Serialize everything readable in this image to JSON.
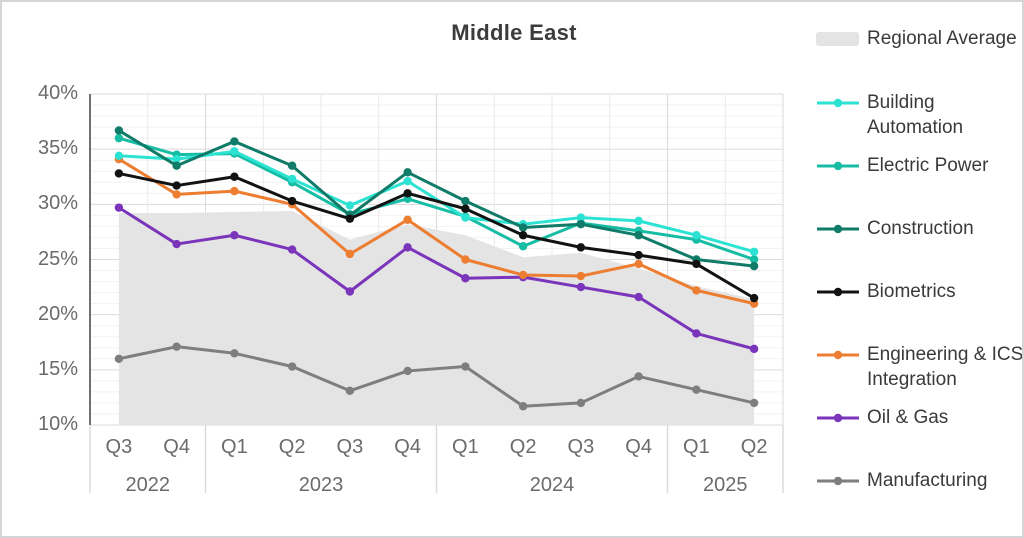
{
  "chart_data": {
    "type": "line",
    "title": "Middle East",
    "ylim": [
      10,
      40
    ],
    "y_ticks": [
      {
        "value": 40,
        "label": "40%"
      },
      {
        "value": 35,
        "label": "35%"
      },
      {
        "value": 30,
        "label": "30%"
      },
      {
        "value": 25,
        "label": "25%"
      },
      {
        "value": 20,
        "label": "20%"
      },
      {
        "value": 15,
        "label": "15%"
      },
      {
        "value": 10,
        "label": "10%"
      }
    ],
    "categories": [
      "Q3",
      "Q4",
      "Q1",
      "Q2",
      "Q3",
      "Q4",
      "Q1",
      "Q2",
      "Q3",
      "Q4",
      "Q1",
      "Q2"
    ],
    "year_groups": [
      {
        "label": "2022",
        "quarters": 2
      },
      {
        "label": "2023",
        "quarters": 4
      },
      {
        "label": "2024",
        "quarters": 4
      },
      {
        "label": "2025",
        "quarters": 2
      }
    ],
    "area_series": {
      "name": "Regional Average",
      "color": "#e4e4e4",
      "values": [
        29.2,
        29.2,
        29.3,
        29.4,
        26.8,
        28.2,
        27.2,
        25.2,
        25.6,
        24.2,
        22.6,
        21.4
      ]
    },
    "series": [
      {
        "name": "Building Automation",
        "color": "#2ce2d2",
        "values": [
          34.4,
          34.1,
          34.8,
          32.3,
          29.9,
          32.1,
          28.8,
          28.2,
          28.8,
          28.5,
          27.2,
          25.7
        ]
      },
      {
        "name": "Electric Power",
        "color": "#16bda4",
        "values": [
          36.0,
          34.5,
          34.6,
          32.0,
          29.1,
          30.5,
          28.9,
          26.2,
          28.3,
          27.6,
          26.8,
          25.0
        ]
      },
      {
        "name": "Construction",
        "color": "#107b68",
        "values": [
          36.7,
          33.5,
          35.7,
          33.5,
          29.0,
          32.9,
          30.3,
          27.9,
          28.2,
          27.2,
          25.0,
          24.4
        ]
      },
      {
        "name": "Biometrics",
        "color": "#121212",
        "values": [
          32.8,
          31.7,
          32.5,
          30.3,
          28.7,
          31.0,
          29.6,
          27.2,
          26.1,
          25.4,
          24.6,
          21.5
        ]
      },
      {
        "name": "Engineering & ICS Integration",
        "color": "#ec7d31",
        "values": [
          34.1,
          30.9,
          31.2,
          30.0,
          25.5,
          28.6,
          25.0,
          23.6,
          23.5,
          24.6,
          22.2,
          21.0
        ]
      },
      {
        "name": "Oil & Gas",
        "color": "#7a35bb",
        "values": [
          29.7,
          26.4,
          27.2,
          25.9,
          22.1,
          26.1,
          23.3,
          23.4,
          22.5,
          21.6,
          18.3,
          16.9
        ]
      },
      {
        "name": "Manufacturing",
        "color": "#7e7e7e",
        "values": [
          16.0,
          17.1,
          16.5,
          15.3,
          13.1,
          14.9,
          15.3,
          11.7,
          12.0,
          14.4,
          13.2,
          12.0
        ]
      }
    ],
    "legend_position": "right",
    "grid": "on"
  }
}
